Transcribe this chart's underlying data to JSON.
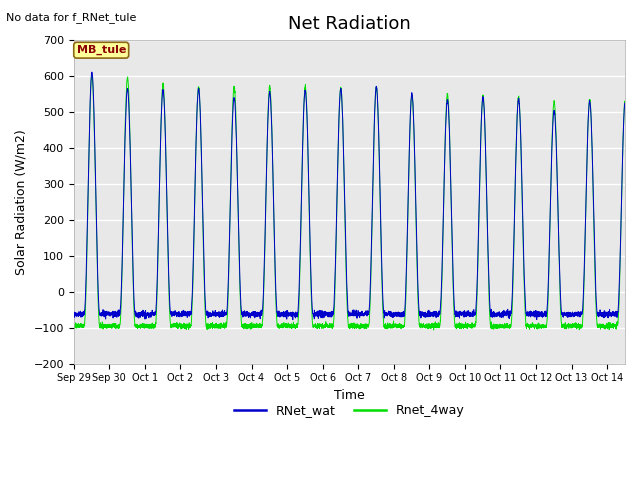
{
  "title": "Net Radiation",
  "no_data_text": "No data for f_RNet_tule",
  "ylabel": "Solar Radiation (W/m2)",
  "xlabel": "Time",
  "ylim": [
    -200,
    700
  ],
  "yticks": [
    -200,
    -100,
    0,
    100,
    200,
    300,
    400,
    500,
    600,
    700
  ],
  "x_tick_labels": [
    "Sep 29",
    "Sep 30",
    "Oct 1",
    "Oct 2",
    "Oct 3",
    "Oct 4",
    "Oct 5",
    "Oct 6",
    "Oct 7",
    "Oct 8",
    "Oct 9",
    "Oct 10",
    "Oct 11",
    "Oct 12",
    "Oct 13",
    "Oct 14"
  ],
  "color_blue": "#0000cc",
  "color_green": "#00dd00",
  "legend_items": [
    "RNet_wat",
    "Rnet_4way"
  ],
  "background_color": "#e8e8e8",
  "grid_color": "#ffffff",
  "blue_night_level": -62,
  "green_night_level": -95,
  "blue_peaks": [
    610,
    565,
    560,
    565,
    540,
    555,
    560,
    565,
    570,
    550,
    535,
    540,
    535,
    505,
    530
  ],
  "green_peaks": [
    600,
    595,
    575,
    570,
    570,
    570,
    570,
    565,
    570,
    545,
    550,
    545,
    540,
    530,
    535
  ],
  "title_fontsize": 13,
  "label_fontsize": 9,
  "tick_fontsize": 8,
  "figsize": [
    6.4,
    4.8
  ],
  "dpi": 100
}
